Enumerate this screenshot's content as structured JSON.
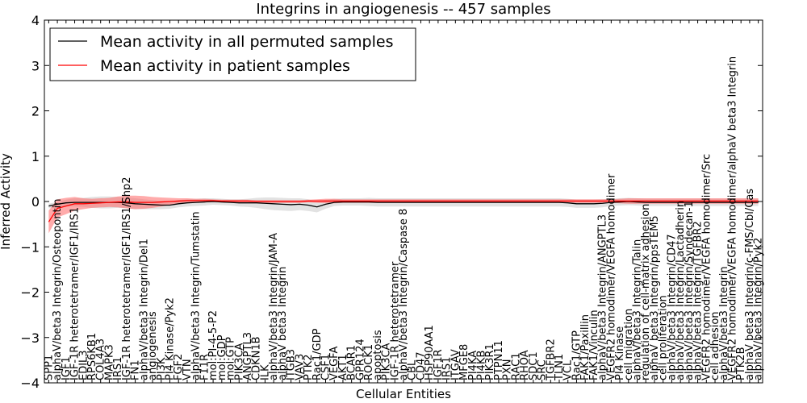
{
  "chart_data": {
    "type": "line",
    "title": "Integrins in angiogenesis -- 457 samples",
    "xlabel": "Cellular Entities",
    "ylabel": "Inferred Activity",
    "ylim": [
      -4,
      4
    ],
    "yticks": [
      -4,
      -3,
      -2,
      -1,
      0,
      1,
      2,
      3,
      4
    ],
    "legend": {
      "placement": "top-left",
      "entries": [
        {
          "label": "Mean activity in all permuted samples",
          "color": "#000000"
        },
        {
          "label": "Mean activity in patient samples",
          "color": "#ff0000"
        }
      ]
    },
    "categories": [
      "SPP1",
      "alphaV/beta3 Integrin/Osteopontin",
      "IGF1",
      "IGF-1R heterotetramer/IGF1/IRS1",
      "EDIL3",
      "RPS6KB1",
      "COL4A3",
      "MAPK3",
      "IRS1",
      "IGF-1R heterotetramer/IGF1/IRS1/Shp2",
      "FN1",
      "alphaV/beta3 Integrin/Del1",
      "angiogenesis",
      "PI3K",
      "PI4 Kinase/Pyk2",
      "FGF2",
      "VTN",
      "alphaV/beta3 Integrin/Tumstatin",
      "F11R",
      "mol:PI-4-5-P2",
      "mol:GDP",
      "mol:GTP",
      "PIK3CA",
      "ANGPTL3",
      "CDKN1B",
      "ILK",
      "alphaV/beta3 Integrin/JAM-A",
      "alphaV beta3 Integrin",
      "ITGB3",
      "VAV3",
      "PTK2",
      "Rac1/GDP",
      "CSF1",
      "VEGFA",
      "AKT1",
      "BCAR1",
      "GPR124",
      "ROCK1",
      "apoptosis",
      "PIK3CA",
      "IGF-1R heterotetramer",
      "alphaV/beta3 Integrin/Caspase 8",
      "CBL",
      "CD47",
      "HSP90AA1",
      "IGF1R",
      "IRS1",
      "ITGAV",
      "MFGE8",
      "PI4KA",
      "PI4KB",
      "PIK3R1",
      "PTPN11",
      "PXN",
      "RAC1",
      "RHOA",
      "SDC1",
      "SRC",
      "TGFBR2",
      "TLN1",
      "VCL",
      "Rac1/GTP",
      "FAK1/Paxillin",
      "FAK1/Vinculin",
      "alphaV/beta3 Integrin/ANGPTL3",
      "VEGFR2 homodimer/VEGFA homodimer",
      "PI4 Kinase",
      "cell migration",
      "alphaV/beta3 Integrin/Talin",
      "regulation of cell-matrix adhesion",
      "alphaV beta3 Integrin/ppsTEM5",
      "cell proliferation",
      "alphaV/beta3 Integrin/CD47",
      "alphaV/beta3 Integrin/Lactadherin",
      "alphaV/beta3 Integrin/Syndecan-1",
      "alphaV/beta3 Integrin/TGFBR2",
      "VEGFR2 homodimer/VEGFA homodimer/Src",
      "cell adhesion",
      "alphaV/beta3 Integrin",
      "VEGFR2 homodimer/VEGFA homodimer/alphaV beta3 Integrin",
      "PTK2B",
      "alphaV beta3 Integrin/c-FMS/Cbl/Cas",
      "alphaV/beta3 Integrin/Pyk2"
    ],
    "series": [
      {
        "name": "Mean activity in all permuted samples",
        "color": "#000000",
        "values": [
          -0.1,
          -0.06,
          -0.03,
          -0.02,
          -0.02,
          -0.02,
          -0.02,
          -0.02,
          -0.02,
          -0.03,
          -0.05,
          -0.06,
          -0.07,
          -0.08,
          -0.08,
          -0.05,
          -0.03,
          -0.02,
          -0.01,
          0,
          -0.01,
          -0.02,
          -0.03,
          -0.03,
          -0.03,
          -0.04,
          -0.05,
          -0.06,
          -0.07,
          -0.06,
          -0.08,
          -0.12,
          -0.06,
          -0.02,
          -0.01,
          -0.01,
          -0.01,
          -0.01,
          -0.02,
          -0.02,
          -0.02,
          -0.02,
          -0.02,
          -0.02,
          -0.02,
          -0.02,
          -0.02,
          -0.02,
          -0.02,
          -0.02,
          -0.02,
          -0.02,
          -0.02,
          -0.02,
          -0.02,
          -0.02,
          -0.02,
          -0.02,
          -0.02,
          -0.02,
          -0.03,
          -0.05,
          -0.05,
          -0.05,
          -0.04,
          -0.02,
          -0.01,
          0,
          -0.01,
          -0.02,
          -0.02,
          -0.02,
          -0.02,
          -0.02,
          -0.02,
          -0.02,
          -0.02,
          -0.02,
          -0.02,
          -0.02,
          -0.02,
          -0.02,
          -0.02
        ]
      },
      {
        "name": "Mean activity in patient samples",
        "color": "#ff0000",
        "values": [
          -0.45,
          -0.15,
          -0.1,
          -0.05,
          -0.05,
          -0.04,
          -0.03,
          -0.02,
          -0.01,
          -0.01,
          -0.02,
          -0.02,
          -0.02,
          -0.01,
          0,
          0.01,
          0.02,
          0.02,
          0.02,
          0.02,
          0.01,
          0.01,
          0.01,
          0.01,
          0,
          0,
          0,
          0,
          0,
          0,
          0.01,
          0.01,
          0.01,
          0.01,
          0.01,
          0.01,
          0.01,
          0.01,
          0.01,
          0.01,
          0.01,
          0.01,
          0.01,
          0.01,
          0.01,
          0.01,
          0.01,
          0.01,
          0.01,
          0.01,
          0.01,
          0.01,
          0.01,
          0.01,
          0.01,
          0.01,
          0.01,
          0.01,
          0.01,
          0.01,
          0.01,
          0.01,
          0.01,
          0.01,
          0.01,
          0.01,
          0.01,
          0.01,
          0.01,
          0.01,
          0.01,
          0.01,
          0.01,
          0.01,
          0.01,
          0.01,
          0.01,
          0.01,
          0.01,
          0.01,
          0.01,
          0.01,
          0.01
        ]
      }
    ],
    "bands": [
      {
        "name": "permuted spread",
        "color": "#bfbfbf",
        "opacity": 0.45,
        "half_width": [
          0.05,
          0.05,
          0.07,
          0.09,
          0.1,
          0.12,
          0.13,
          0.13,
          0.12,
          0.12,
          0.12,
          0.11,
          0.1,
          0.09,
          0.08,
          0.08,
          0.08,
          0.08,
          0.08,
          0.07,
          0.07,
          0.07,
          0.08,
          0.09,
          0.11,
          0.13,
          0.14,
          0.14,
          0.14,
          0.13,
          0.13,
          0.12,
          0.1,
          0.08,
          0.08,
          0.08,
          0.08,
          0.09,
          0.09,
          0.09,
          0.09,
          0.09,
          0.09,
          0.09,
          0.09,
          0.09,
          0.09,
          0.09,
          0.09,
          0.09,
          0.09,
          0.09,
          0.09,
          0.09,
          0.09,
          0.09,
          0.09,
          0.09,
          0.09,
          0.09,
          0.09,
          0.09,
          0.09,
          0.09,
          0.09,
          0.08,
          0.08,
          0.08,
          0.08,
          0.08,
          0.08,
          0.08,
          0.08,
          0.08,
          0.08,
          0.08,
          0.08,
          0.08,
          0.08,
          0.08,
          0.08,
          0.08,
          0.08
        ]
      },
      {
        "name": "patient spread",
        "color": "#ff6666",
        "opacity": 0.55,
        "half_width": [
          0.25,
          0.2,
          0.18,
          0.15,
          0.12,
          0.1,
          0.1,
          0.1,
          0.12,
          0.14,
          0.15,
          0.14,
          0.12,
          0.1,
          0.08,
          0.06,
          0.05,
          0.04,
          0.04,
          0.03,
          0.03,
          0.03,
          0.03,
          0.03,
          0.03,
          0.03,
          0.03,
          0.03,
          0.03,
          0.03,
          0.03,
          0.04,
          0.05,
          0.05,
          0.04,
          0.04,
          0.04,
          0.04,
          0.04,
          0.04,
          0.04,
          0.04,
          0.04,
          0.04,
          0.04,
          0.04,
          0.04,
          0.04,
          0.04,
          0.04,
          0.04,
          0.04,
          0.04,
          0.04,
          0.04,
          0.04,
          0.04,
          0.04,
          0.04,
          0.04,
          0.04,
          0.04,
          0.04,
          0.04,
          0.04,
          0.04,
          0.05,
          0.06,
          0.06,
          0.06,
          0.06,
          0.06,
          0.06,
          0.06,
          0.06,
          0.06,
          0.06,
          0.06,
          0.06,
          0.06,
          0.06,
          0.06,
          0.06
        ]
      }
    ],
    "grid": false
  }
}
